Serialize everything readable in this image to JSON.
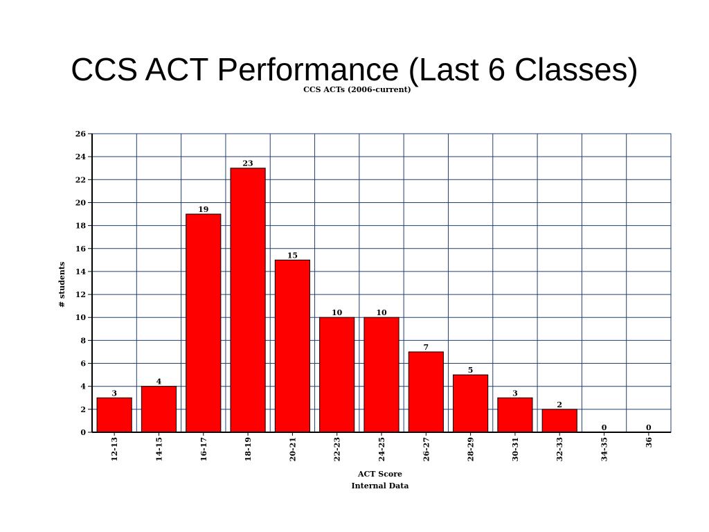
{
  "slide": {
    "title": "CCS ACT Performance (Last 6 Classes)"
  },
  "chart_data": {
    "type": "bar",
    "title": "CCS ACTs (2006-current)",
    "xlabel": "ACT Score",
    "subcaption": "Internal Data",
    "ylabel": "# students",
    "categories": [
      "12-13",
      "14-15",
      "16-17",
      "18-19",
      "20-21",
      "22-23",
      "24-25",
      "26-27",
      "28-29",
      "30-31",
      "32-33",
      "34-35",
      "36"
    ],
    "values": [
      3,
      4,
      19,
      23,
      15,
      10,
      10,
      7,
      5,
      3,
      2,
      0,
      0
    ],
    "color": "#ff0000",
    "ylim": [
      0,
      26
    ],
    "yticks": [
      0,
      2,
      4,
      6,
      8,
      10,
      12,
      14,
      16,
      18,
      20,
      22,
      24,
      26
    ],
    "grid": true
  }
}
